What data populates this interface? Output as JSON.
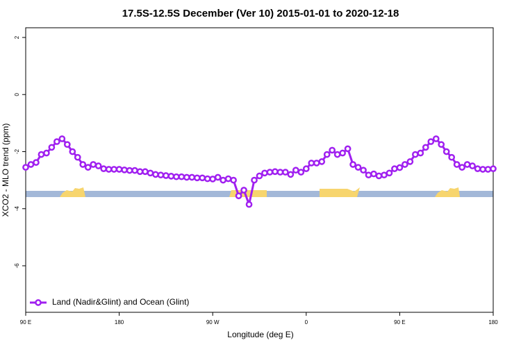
{
  "chart_data": {
    "type": "line",
    "title": "17.5S-12.5S December (Ver 10)   2015-01-01 to 2020-12-18",
    "x_label": "Longitude (deg E)",
    "y_label": "XCO2 - MLO trend (ppm)",
    "xlim": [
      90,
      540
    ],
    "ylim": [
      -7.63,
      2.34
    ],
    "xticks": [
      {
        "value": 90,
        "label": "90 E"
      },
      180,
      {
        "value": 270,
        "label": "90 W"
      },
      {
        "value": 360,
        "label": "0"
      },
      {
        "value": 450,
        "label": "90 E"
      },
      {
        "value": 540,
        "label": "180"
      }
    ],
    "yticks": [
      2,
      0,
      -2,
      -4,
      -6
    ],
    "legend": "bottom-left",
    "x": [
      90,
      95,
      100,
      105,
      110,
      115,
      120,
      125,
      130,
      135,
      140,
      145,
      150,
      155,
      160,
      165,
      170,
      175,
      180,
      185,
      190,
      195,
      200,
      205,
      210,
      215,
      220,
      225,
      230,
      235,
      240,
      245,
      250,
      255,
      260,
      265,
      270,
      275,
      280,
      285,
      290,
      295,
      300,
      305,
      310,
      315,
      320,
      325,
      330,
      335,
      340,
      345,
      350,
      355,
      360,
      365,
      370,
      375,
      380,
      385,
      390,
      395,
      400,
      405,
      410,
      415,
      420,
      425,
      430,
      435,
      440,
      445,
      450,
      455,
      460,
      465,
      470,
      475,
      480,
      485,
      490,
      495,
      500,
      505,
      510,
      515,
      520,
      525,
      530,
      535,
      540
    ],
    "series": [
      {
        "name": "Land (Nadir&Glint) and Ocean (Glint)",
        "color": "#a020f0",
        "values": [
          -2.55,
          -2.45,
          -2.38,
          -2.1,
          -2.05,
          -1.85,
          -1.65,
          -1.55,
          -1.75,
          -2.0,
          -2.2,
          -2.45,
          -2.55,
          -2.45,
          -2.5,
          -2.6,
          -2.62,
          -2.62,
          -2.62,
          -2.64,
          -2.66,
          -2.66,
          -2.7,
          -2.7,
          -2.75,
          -2.8,
          -2.82,
          -2.84,
          -2.86,
          -2.88,
          -2.88,
          -2.9,
          -2.9,
          -2.92,
          -2.92,
          -2.95,
          -2.96,
          -2.9,
          -3.0,
          -2.95,
          -3.0,
          -3.55,
          -3.35,
          -3.85,
          -3.0,
          -2.85,
          -2.75,
          -2.72,
          -2.7,
          -2.72,
          -2.72,
          -2.8,
          -2.65,
          -2.72,
          -2.6,
          -2.4,
          -2.4,
          -2.35,
          -2.1,
          -1.95,
          -2.1,
          -2.05,
          -1.9,
          -2.45,
          -2.55,
          -2.65,
          -2.82,
          -2.78,
          -2.85,
          -2.82,
          -2.75,
          -2.6,
          -2.56,
          -2.45,
          -2.35,
          -2.1,
          -2.05,
          -1.85,
          -1.65,
          -1.55,
          -1.75,
          -2.0,
          -2.2,
          -2.45,
          -2.55,
          -2.45,
          -2.5,
          -2.6,
          -2.62,
          -2.62,
          -2.6
        ]
      }
    ]
  }
}
